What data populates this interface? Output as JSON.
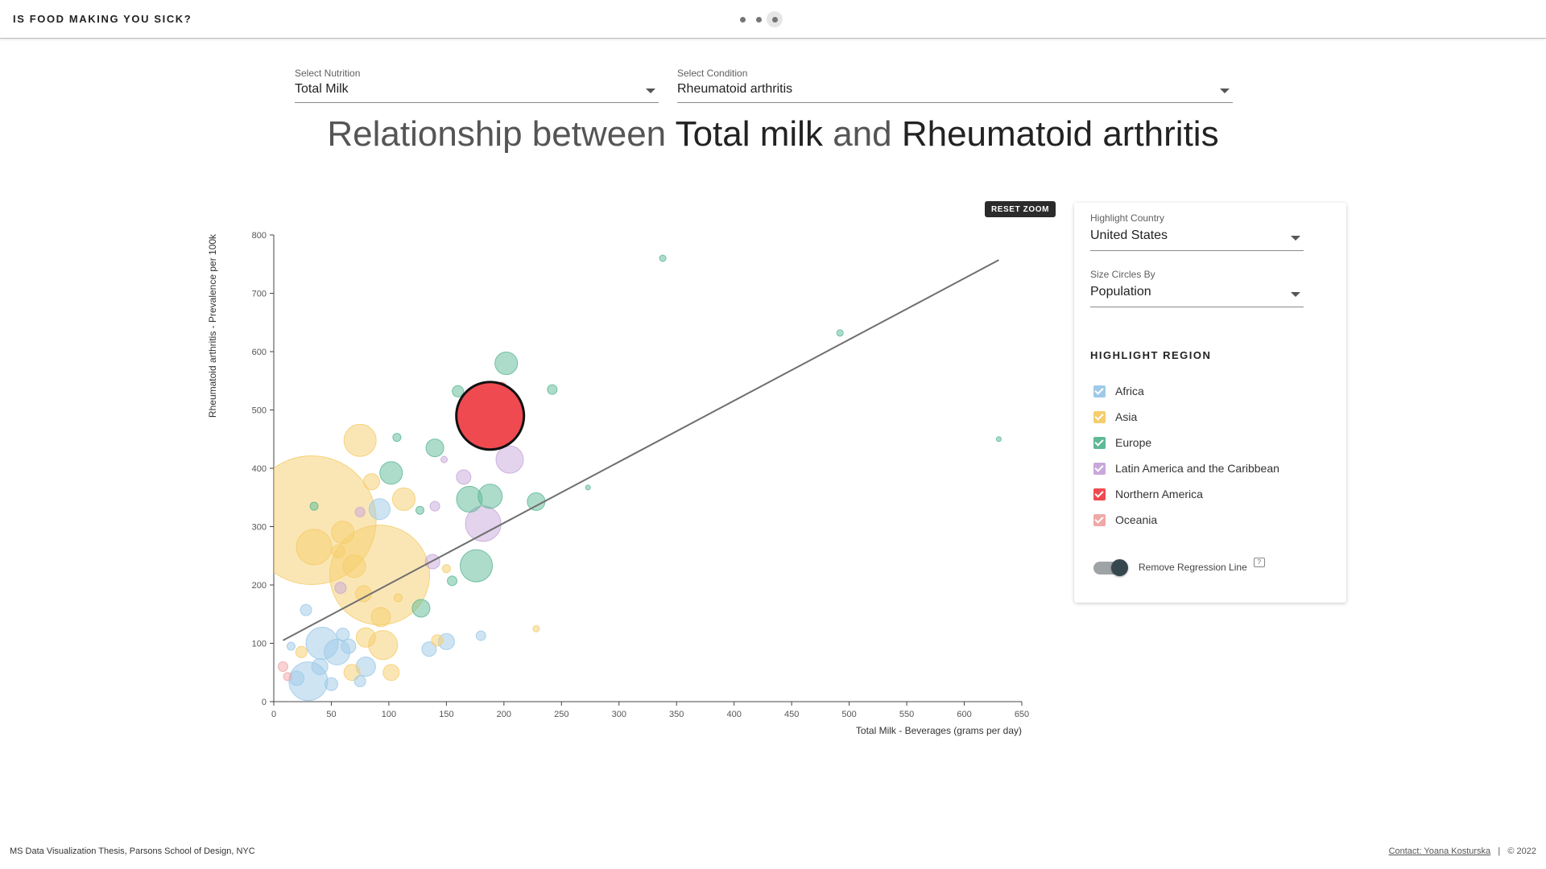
{
  "header": {
    "title": "IS FOOD MAKING YOU SICK?",
    "steps": 3,
    "active_step": 3
  },
  "controls": {
    "nutrition": {
      "label": "Select Nutrition",
      "value": "Total Milk"
    },
    "condition": {
      "label": "Select Condition",
      "value": "Rheumatoid arthritis"
    }
  },
  "headline": {
    "prefix": "Relationship between",
    "nutrition": "Total milk",
    "connector": "and",
    "condition": "Rheumatoid arthritis"
  },
  "reset_zoom_label": "RESET ZOOM",
  "panel": {
    "highlight_country": {
      "label": "Highlight Country",
      "value": "United States"
    },
    "size_by": {
      "label": "Size Circles By",
      "value": "Population"
    },
    "region_title": "HIGHLIGHT REGION",
    "regions": [
      {
        "label": "Africa",
        "color": "#9ecae8"
      },
      {
        "label": "Asia",
        "color": "#f6cd6b"
      },
      {
        "label": "Europe",
        "color": "#5eb996"
      },
      {
        "label": "Latin America and the Caribbean",
        "color": "#c8a8da"
      },
      {
        "label": "Northern America",
        "color": "#ef4a50"
      },
      {
        "label": "Oceania",
        "color": "#f0a8a8"
      }
    ],
    "toggle_label": "Remove Regression Line",
    "toggle_on": true
  },
  "chart_data": {
    "type": "scatter",
    "xlabel": "Total Milk - Beverages (grams per day)",
    "ylabel": "Rheumatoid arthritis - Prevalence per 100k",
    "xlim": [
      0,
      650
    ],
    "ylim": [
      0,
      800
    ],
    "xticks": [
      0,
      50,
      100,
      150,
      200,
      250,
      300,
      350,
      400,
      450,
      500,
      550,
      600,
      650
    ],
    "yticks": [
      0,
      100,
      200,
      300,
      400,
      500,
      600,
      700,
      800
    ],
    "size_by": "Population",
    "highlight": {
      "country": "United States",
      "x": 188,
      "y": 490,
      "size": 42,
      "color": "#ef4a50"
    },
    "regression_line": {
      "x": [
        8,
        630
      ],
      "y": [
        105,
        757
      ]
    },
    "series": [
      {
        "region": "Asia",
        "points": [
          {
            "x": 33,
            "y": 311,
            "size": 80
          },
          {
            "x": 92,
            "y": 217,
            "size": 62
          },
          {
            "x": 75,
            "y": 448,
            "size": 20
          },
          {
            "x": 35,
            "y": 265,
            "size": 22
          },
          {
            "x": 95,
            "y": 97,
            "size": 18
          },
          {
            "x": 85,
            "y": 377,
            "size": 10
          },
          {
            "x": 113,
            "y": 347,
            "size": 14
          },
          {
            "x": 60,
            "y": 290,
            "size": 14
          },
          {
            "x": 70,
            "y": 232,
            "size": 14
          },
          {
            "x": 80,
            "y": 110,
            "size": 12
          },
          {
            "x": 68,
            "y": 50,
            "size": 10
          },
          {
            "x": 102,
            "y": 50,
            "size": 10
          },
          {
            "x": 93,
            "y": 145,
            "size": 12
          },
          {
            "x": 78,
            "y": 185,
            "size": 10
          },
          {
            "x": 56,
            "y": 258,
            "size": 8
          },
          {
            "x": 142,
            "y": 105,
            "size": 7
          },
          {
            "x": 228,
            "y": 125,
            "size": 4
          },
          {
            "x": 24,
            "y": 85,
            "size": 7
          },
          {
            "x": 108,
            "y": 178,
            "size": 5
          },
          {
            "x": 150,
            "y": 228,
            "size": 5
          }
        ]
      },
      {
        "region": "Africa",
        "points": [
          {
            "x": 30,
            "y": 35,
            "size": 24
          },
          {
            "x": 42,
            "y": 100,
            "size": 20
          },
          {
            "x": 55,
            "y": 85,
            "size": 16
          },
          {
            "x": 20,
            "y": 40,
            "size": 9
          },
          {
            "x": 80,
            "y": 60,
            "size": 12
          },
          {
            "x": 92,
            "y": 330,
            "size": 13
          },
          {
            "x": 150,
            "y": 103,
            "size": 10
          },
          {
            "x": 135,
            "y": 90,
            "size": 9
          },
          {
            "x": 60,
            "y": 115,
            "size": 8
          },
          {
            "x": 180,
            "y": 113,
            "size": 6
          },
          {
            "x": 15,
            "y": 95,
            "size": 5
          },
          {
            "x": 50,
            "y": 30,
            "size": 8
          },
          {
            "x": 75,
            "y": 35,
            "size": 7
          },
          {
            "x": 40,
            "y": 60,
            "size": 10
          },
          {
            "x": 65,
            "y": 95,
            "size": 9
          },
          {
            "x": 28,
            "y": 157,
            "size": 7
          }
        ]
      },
      {
        "region": "Europe",
        "points": [
          {
            "x": 202,
            "y": 580,
            "size": 14
          },
          {
            "x": 176,
            "y": 233,
            "size": 20
          },
          {
            "x": 170,
            "y": 347,
            "size": 16
          },
          {
            "x": 188,
            "y": 352,
            "size": 15
          },
          {
            "x": 102,
            "y": 392,
            "size": 14
          },
          {
            "x": 140,
            "y": 435,
            "size": 11
          },
          {
            "x": 228,
            "y": 343,
            "size": 11
          },
          {
            "x": 128,
            "y": 160,
            "size": 11
          },
          {
            "x": 160,
            "y": 532,
            "size": 7
          },
          {
            "x": 242,
            "y": 535,
            "size": 6
          },
          {
            "x": 338,
            "y": 760,
            "size": 4
          },
          {
            "x": 492,
            "y": 632,
            "size": 4
          },
          {
            "x": 630,
            "y": 450,
            "size": 3
          },
          {
            "x": 273,
            "y": 367,
            "size": 3
          },
          {
            "x": 107,
            "y": 453,
            "size": 5
          },
          {
            "x": 155,
            "y": 207,
            "size": 6
          },
          {
            "x": 127,
            "y": 328,
            "size": 5
          },
          {
            "x": 35,
            "y": 335,
            "size": 5
          }
        ]
      },
      {
        "region": "Latin America and the Caribbean",
        "points": [
          {
            "x": 182,
            "y": 305,
            "size": 22
          },
          {
            "x": 205,
            "y": 415,
            "size": 17
          },
          {
            "x": 165,
            "y": 385,
            "size": 9
          },
          {
            "x": 138,
            "y": 240,
            "size": 9
          },
          {
            "x": 140,
            "y": 335,
            "size": 6
          },
          {
            "x": 58,
            "y": 195,
            "size": 7
          },
          {
            "x": 75,
            "y": 325,
            "size": 6
          },
          {
            "x": 148,
            "y": 415,
            "size": 4
          }
        ]
      },
      {
        "region": "Northern America",
        "points": [
          {
            "x": 197,
            "y": 535,
            "size": 9
          }
        ]
      },
      {
        "region": "Oceania",
        "points": [
          {
            "x": 8,
            "y": 60,
            "size": 6
          },
          {
            "x": 12,
            "y": 43,
            "size": 5
          }
        ]
      }
    ]
  },
  "footer": {
    "left": "MS Data Visualization Thesis, Parsons School of Design, NYC",
    "contact": "Contact: Yoana Kosturska",
    "separator": "|",
    "copyright": "© 2022"
  }
}
